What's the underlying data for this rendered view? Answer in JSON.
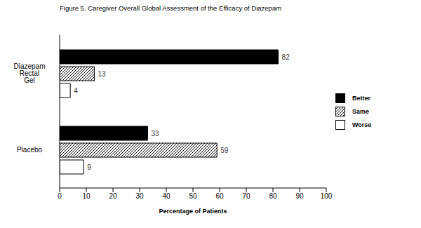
{
  "chart_data": {
    "type": "bar",
    "title": "Figure 5. Caregiver Overall Global Assessment of the Efficacy of Diazepam",
    "orientation": "horizontal",
    "categories": [
      "Diazepam Rectal Gel",
      "Placebo"
    ],
    "series": [
      {
        "name": "Better",
        "color": "#000000",
        "values": [
          82,
          33
        ]
      },
      {
        "name": "Same",
        "color": "#000000",
        "line_style": "hatched",
        "values": [
          13,
          59
        ]
      },
      {
        "name": "Worse",
        "color": "#ffffff",
        "values": [
          4,
          9
        ]
      }
    ],
    "xlabel": "Percentage of Patients",
    "xlim": [
      0,
      100
    ],
    "xticks": [
      0,
      10,
      20,
      30,
      40,
      50,
      60,
      70,
      80,
      90,
      100
    ],
    "data_labels": true,
    "legend": "right",
    "grid": false
  }
}
